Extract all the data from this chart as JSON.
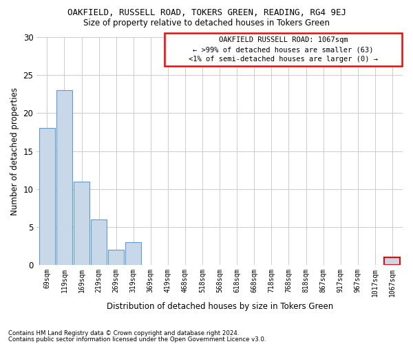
{
  "title1": "OAKFIELD, RUSSELL ROAD, TOKERS GREEN, READING, RG4 9EJ",
  "title2": "Size of property relative to detached houses in Tokers Green",
  "xlabel": "Distribution of detached houses by size in Tokers Green",
  "ylabel": "Number of detached properties",
  "bar_color": "#c8d8e8",
  "bar_edge_color": "#5b9bd5",
  "highlight_color": "#c8d8e8",
  "highlight_edge_color": "red",
  "bins": [
    "69sqm",
    "119sqm",
    "169sqm",
    "219sqm",
    "269sqm",
    "319sqm",
    "369sqm",
    "419sqm",
    "468sqm",
    "518sqm",
    "568sqm",
    "618sqm",
    "668sqm",
    "718sqm",
    "768sqm",
    "818sqm",
    "867sqm",
    "917sqm",
    "967sqm",
    "1017sqm",
    "1067sqm"
  ],
  "values": [
    18,
    23,
    11,
    6,
    2,
    3,
    0,
    0,
    0,
    0,
    0,
    0,
    0,
    0,
    0,
    0,
    0,
    0,
    0,
    0,
    1
  ],
  "ylim": [
    0,
    30
  ],
  "yticks": [
    0,
    5,
    10,
    15,
    20,
    25,
    30
  ],
  "annotation_title": "OAKFIELD RUSSELL ROAD: 1067sqm",
  "annotation_line1": "← >99% of detached houses are smaller (63)",
  "annotation_line2": "<1% of semi-detached houses are larger (0) →",
  "highlight_bar_index": 20,
  "footnote1": "Contains HM Land Registry data © Crown copyright and database right 2024.",
  "footnote2": "Contains public sector information licensed under the Open Government Licence v3.0.",
  "background_color": "#ffffff",
  "grid_color": "#cccccc"
}
